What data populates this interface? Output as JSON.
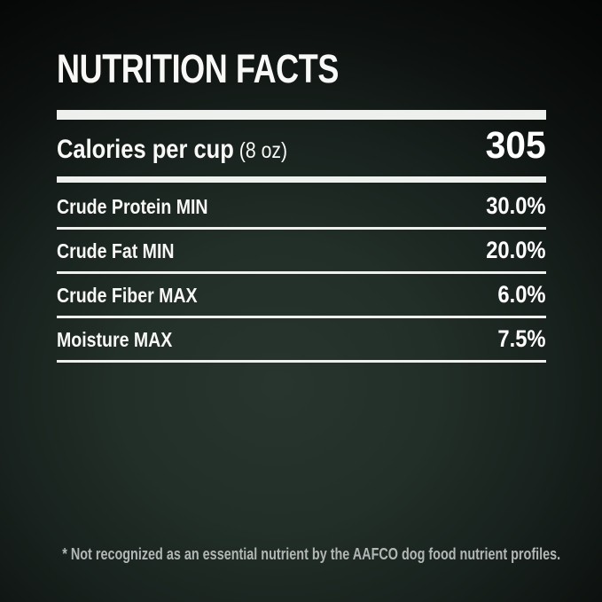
{
  "title": "NUTRITION FACTS",
  "calories": {
    "label": "Calories per cup",
    "unit": "(8 oz)",
    "value": "305"
  },
  "nutrients": [
    {
      "label": "Crude Protein MIN",
      "value": "30.0%"
    },
    {
      "label": "Crude Fat MIN",
      "value": "20.0%"
    },
    {
      "label": "Crude Fiber MAX",
      "value": "6.0%"
    },
    {
      "label": "Moisture MAX",
      "value": "7.5%"
    }
  ],
  "footnote": "* Not recognized as an essential nutrient by the AAFCO dog food nutrient profiles.",
  "colors": {
    "background_center": "#28352f",
    "background_edge": "#030404",
    "text": "#f8f8f6",
    "rule": "#eef0ee",
    "footnote_text": "#b2b7b5"
  }
}
